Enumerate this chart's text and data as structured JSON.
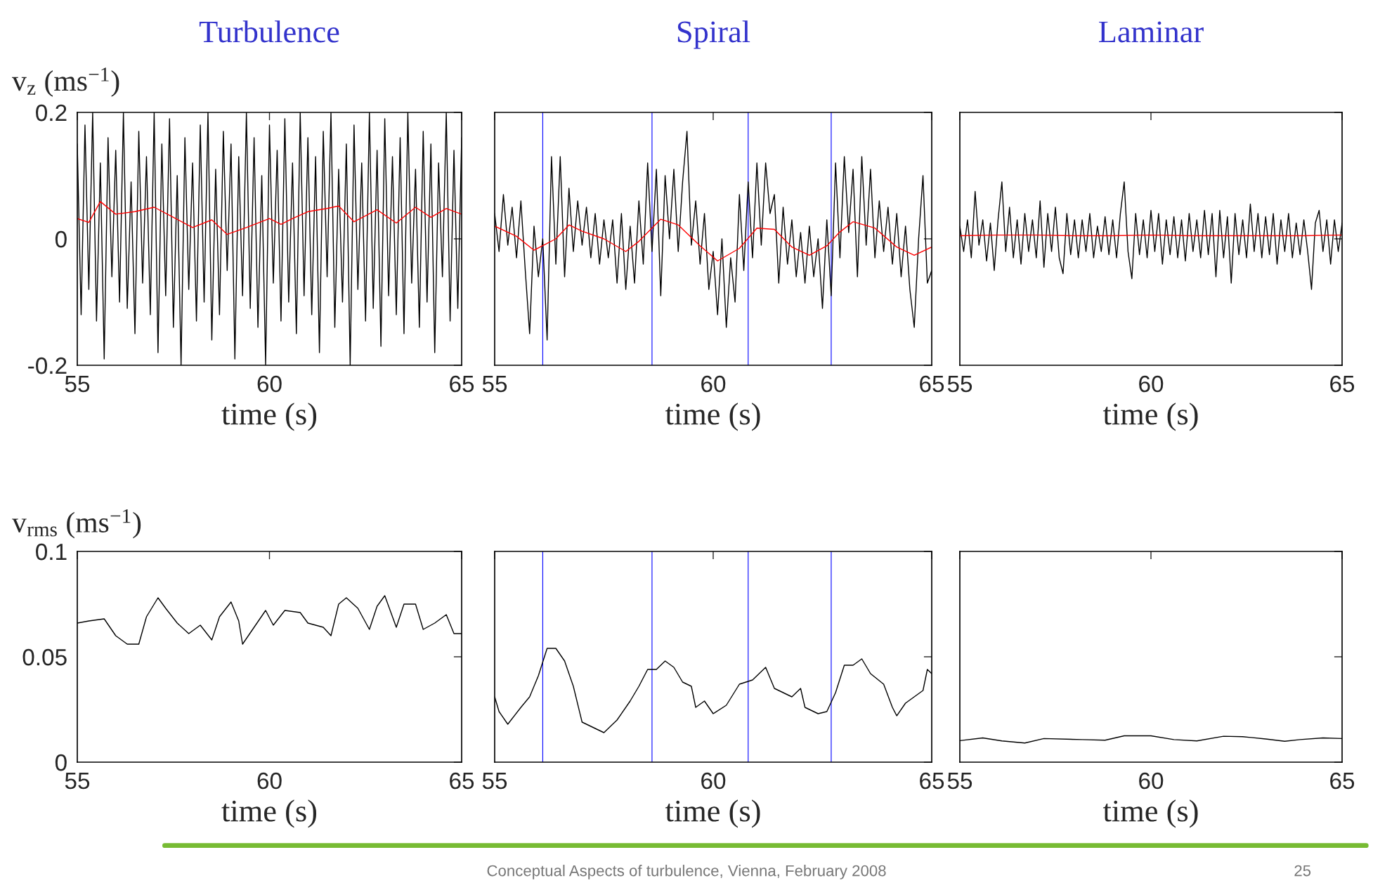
{
  "chart_data": [
    {
      "type": "line",
      "title": "Turbulence",
      "xlabel": "time (s)",
      "ylabel": "v$_{z}$ (ms$^{−1}$)",
      "xlim": [
        55,
        65
      ],
      "xticks": [
        55,
        60,
        65
      ],
      "ylim": [
        -0.2,
        0.2
      ],
      "yticks": [
        -0.2,
        0,
        0.2
      ],
      "series": [
        {
          "color": "#000000",
          "x": [
            55,
            55.1,
            55.2,
            55.3,
            55.4,
            55.5,
            55.6,
            55.7,
            55.8,
            55.9,
            56,
            56.1,
            56.2,
            56.3,
            56.4,
            56.5,
            56.6,
            56.7,
            56.8,
            56.9,
            57,
            57.1,
            57.2,
            57.3,
            57.4,
            57.5,
            57.6,
            57.7,
            57.8,
            57.9,
            58,
            58.1,
            58.2,
            58.3,
            58.4,
            58.5,
            58.6,
            58.7,
            58.8,
            58.9,
            59,
            59.1,
            59.2,
            59.3,
            59.4,
            59.5,
            59.6,
            59.7,
            59.8,
            59.9,
            60,
            60.1,
            60.2,
            60.3,
            60.4,
            60.5,
            60.6,
            60.7,
            60.8,
            60.9,
            61,
            61.1,
            61.2,
            61.3,
            61.4,
            61.5,
            61.6,
            61.7,
            61.8,
            61.9,
            62,
            62.1,
            62.2,
            62.3,
            62.4,
            62.5,
            62.6,
            62.7,
            62.8,
            62.9,
            63,
            63.1,
            63.2,
            63.3,
            63.4,
            63.5,
            63.6,
            63.7,
            63.8,
            63.9,
            64,
            64.1,
            64.2,
            64.3,
            64.4,
            64.5,
            64.6,
            64.7,
            64.8,
            64.9,
            65
          ],
          "values": [
            0.15,
            -0.12,
            0.18,
            -0.08,
            0.2,
            -0.13,
            0.12,
            -0.19,
            0.16,
            -0.06,
            0.14,
            -0.1,
            0.2,
            -0.11,
            0.09,
            -0.15,
            0.17,
            -0.07,
            0.13,
            -0.12,
            0.2,
            -0.18,
            0.15,
            -0.09,
            0.19,
            -0.14,
            0.1,
            -0.2,
            0.16,
            -0.08,
            0.12,
            -0.13,
            0.18,
            -0.1,
            0.2,
            -0.16,
            0.11,
            -0.12,
            0.17,
            -0.05,
            0.15,
            -0.19,
            0.13,
            -0.09,
            0.2,
            -0.11,
            0.16,
            -0.14,
            0.1,
            -0.2,
            0.18,
            -0.07,
            0.14,
            -0.13,
            0.19,
            -0.1,
            0.12,
            -0.15,
            0.2,
            -0.09,
            0.16,
            -0.12,
            0.13,
            -0.18,
            0.17,
            -0.06,
            0.2,
            -0.14,
            0.11,
            -0.1,
            0.15,
            -0.2,
            0.18,
            -0.08,
            0.12,
            -0.13,
            0.2,
            -0.11,
            0.14,
            -0.17,
            0.19,
            -0.09,
            0.13,
            -0.12,
            0.16,
            -0.15,
            0.2,
            -0.07,
            0.11,
            -0.14,
            0.17,
            -0.1,
            0.15,
            -0.18,
            0.12,
            -0.06,
            0.2,
            -0.13,
            0.14,
            -0.11,
            0.16
          ]
        },
        {
          "color": "#ff0000",
          "x": [
            55,
            55.3,
            55.6,
            56,
            56.5,
            57,
            57.5,
            58,
            58.5,
            58.9,
            59.4,
            60,
            60.3,
            60.6,
            61,
            61.5,
            61.8,
            62.2,
            62.8,
            63.3,
            63.8,
            64.2,
            64.6,
            65
          ],
          "values": [
            0.032,
            0.026,
            0.059,
            0.039,
            0.043,
            0.05,
            0.034,
            0.018,
            0.03,
            0.007,
            0.018,
            0.032,
            0.023,
            0.032,
            0.043,
            0.048,
            0.052,
            0.027,
            0.046,
            0.025,
            0.05,
            0.034,
            0.048,
            0.039
          ]
        }
      ]
    },
    {
      "type": "line",
      "title": "Spiral",
      "xlabel": "time (s)",
      "xlim": [
        55,
        65
      ],
      "xticks": [
        55,
        60,
        65
      ],
      "ylim": [
        -0.2,
        0.2
      ],
      "yticks": [
        -0.2,
        0,
        0.2
      ],
      "tick_labels": "x",
      "ref_lines": [
        {
          "axis": "x",
          "value": 56.1,
          "color": "#0000ff"
        },
        {
          "axis": "x",
          "value": 58.6,
          "color": "#0000ff"
        },
        {
          "axis": "x",
          "value": 60.8,
          "color": "#0000ff"
        },
        {
          "axis": "x",
          "value": 62.7,
          "color": "#0000ff"
        }
      ],
      "series": [
        {
          "color": "#000000",
          "x": [
            55,
            55.1,
            55.2,
            55.3,
            55.4,
            55.5,
            55.6,
            55.7,
            55.8,
            55.9,
            56,
            56.1,
            56.2,
            56.3,
            56.4,
            56.5,
            56.6,
            56.7,
            56.8,
            56.9,
            57,
            57.1,
            57.2,
            57.3,
            57.4,
            57.5,
            57.6,
            57.7,
            57.8,
            57.9,
            58,
            58.1,
            58.2,
            58.3,
            58.4,
            58.5,
            58.6,
            58.7,
            58.8,
            58.9,
            59,
            59.1,
            59.2,
            59.3,
            59.4,
            59.5,
            59.6,
            59.7,
            59.8,
            59.9,
            60,
            60.1,
            60.2,
            60.3,
            60.4,
            60.5,
            60.6,
            60.7,
            60.8,
            60.9,
            61,
            61.1,
            61.2,
            61.3,
            61.4,
            61.5,
            61.6,
            61.7,
            61.8,
            61.9,
            62,
            62.1,
            62.2,
            62.3,
            62.4,
            62.5,
            62.6,
            62.7,
            62.8,
            62.9,
            63,
            63.1,
            63.2,
            63.3,
            63.4,
            63.5,
            63.6,
            63.7,
            63.8,
            63.9,
            64,
            64.1,
            64.2,
            64.3,
            64.4,
            64.5,
            64.6,
            64.7,
            64.8,
            64.9,
            65
          ],
          "values": [
            0.04,
            -0.02,
            0.07,
            -0.01,
            0.05,
            -0.03,
            0.06,
            -0.05,
            -0.15,
            0.02,
            -0.06,
            0.0,
            -0.16,
            0.13,
            -0.04,
            0.13,
            -0.06,
            0.08,
            -0.02,
            0.06,
            -0.01,
            0.05,
            -0.03,
            0.04,
            -0.04,
            0.03,
            -0.03,
            0.03,
            -0.07,
            0.04,
            -0.08,
            0.02,
            -0.07,
            0.06,
            -0.04,
            0.12,
            -0.02,
            0.11,
            -0.09,
            0.1,
            0.0,
            0.11,
            -0.02,
            0.09,
            0.17,
            -0.01,
            0.06,
            -0.04,
            0.04,
            -0.08,
            -0.02,
            -0.12,
            0.0,
            -0.14,
            -0.03,
            -0.1,
            0.07,
            -0.05,
            0.09,
            -0.03,
            0.12,
            -0.01,
            0.12,
            0.04,
            0.07,
            -0.07,
            0.05,
            -0.04,
            0.03,
            -0.06,
            0.01,
            -0.07,
            0.02,
            -0.06,
            0.0,
            -0.11,
            0.03,
            -0.09,
            0.12,
            -0.03,
            0.13,
            0.01,
            0.11,
            -0.06,
            0.13,
            -0.01,
            0.11,
            -0.03,
            0.06,
            -0.02,
            0.05,
            -0.04,
            0.04,
            -0.06,
            0.02,
            -0.08,
            -0.14,
            0.0,
            0.1,
            -0.07,
            -0.05
          ]
        },
        {
          "color": "#ff0000",
          "x": [
            55,
            55.5,
            55.9,
            56.4,
            56.7,
            57,
            57.5,
            58,
            58.3,
            58.8,
            59.2,
            59.7,
            60.1,
            60.6,
            61,
            61.4,
            61.8,
            62.2,
            62.6,
            62.9,
            63.2,
            63.7,
            64.2,
            64.6,
            65
          ],
          "values": [
            0.02,
            0.004,
            -0.018,
            0,
            0.022,
            0.012,
            0,
            -0.02,
            -0.004,
            0.031,
            0.022,
            -0.011,
            -0.035,
            -0.015,
            0.017,
            0.015,
            -0.013,
            -0.026,
            -0.011,
            0.011,
            0.027,
            0.017,
            -0.013,
            -0.026,
            -0.013
          ]
        }
      ]
    },
    {
      "type": "line",
      "title": "Laminar",
      "xlabel": "time (s)",
      "xlim": [
        55,
        65
      ],
      "xticks": [
        55,
        60,
        65
      ],
      "ylim": [
        -0.2,
        0.2
      ],
      "yticks": [
        -0.2,
        0,
        0.2
      ],
      "tick_labels": "x",
      "series": [
        {
          "color": "#000000",
          "x": [
            55,
            55.1,
            55.2,
            55.3,
            55.4,
            55.5,
            55.6,
            55.7,
            55.8,
            55.9,
            56,
            56.1,
            56.2,
            56.3,
            56.4,
            56.5,
            56.6,
            56.7,
            56.8,
            56.9,
            57,
            57.1,
            57.2,
            57.3,
            57.4,
            57.5,
            57.6,
            57.7,
            57.8,
            57.9,
            58,
            58.1,
            58.2,
            58.3,
            58.4,
            58.5,
            58.6,
            58.7,
            58.8,
            58.9,
            59,
            59.1,
            59.2,
            59.3,
            59.4,
            59.5,
            59.6,
            59.7,
            59.8,
            59.9,
            60,
            60.1,
            60.2,
            60.3,
            60.4,
            60.5,
            60.6,
            60.7,
            60.8,
            60.9,
            61,
            61.1,
            61.2,
            61.3,
            61.4,
            61.5,
            61.6,
            61.7,
            61.8,
            61.9,
            62,
            62.1,
            62.2,
            62.3,
            62.4,
            62.5,
            62.6,
            62.7,
            62.8,
            62.9,
            63,
            63.1,
            63.2,
            63.3,
            63.4,
            63.5,
            63.6,
            63.7,
            63.8,
            63.9,
            64,
            64.1,
            64.2,
            64.3,
            64.4,
            64.5,
            64.6,
            64.7,
            64.8,
            64.9,
            65
          ],
          "values": [
            0.02,
            -0.02,
            0.03,
            -0.03,
            0.075,
            -0.01,
            0.03,
            -0.035,
            0.025,
            -0.05,
            0.03,
            0.09,
            -0.02,
            0.05,
            -0.03,
            0.03,
            -0.04,
            0.04,
            -0.02,
            0.03,
            -0.03,
            0.06,
            -0.045,
            0.04,
            -0.02,
            0.05,
            -0.03,
            -0.055,
            0.04,
            -0.025,
            0.03,
            -0.03,
            0.03,
            -0.02,
            0.04,
            -0.03,
            0.02,
            -0.02,
            0.035,
            -0.025,
            0.03,
            -0.03,
            0.04,
            0.09,
            -0.02,
            -0.063,
            0.04,
            -0.025,
            0.03,
            -0.03,
            0.045,
            -0.02,
            0.04,
            -0.04,
            0.03,
            -0.025,
            0.035,
            -0.03,
            0.03,
            -0.035,
            0.04,
            -0.02,
            0.03,
            -0.03,
            0.045,
            -0.025,
            0.04,
            -0.06,
            0.045,
            -0.03,
            0.035,
            -0.07,
            0.04,
            -0.025,
            0.03,
            -0.03,
            0.055,
            -0.02,
            0.04,
            -0.03,
            0.035,
            -0.025,
            0.04,
            -0.04,
            0.03,
            -0.02,
            0.04,
            -0.03,
            0.025,
            -0.025,
            0.03,
            -0.02,
            -0.08,
            0.025,
            0.045,
            -0.02,
            0.03,
            -0.04,
            0.03,
            -0.02,
            0.025
          ]
        },
        {
          "color": "#ff0000",
          "x": [
            55,
            56,
            57,
            58,
            59,
            60,
            61,
            62,
            63,
            64,
            65
          ],
          "values": [
            0.005,
            0.006,
            0.006,
            0.005,
            0.005,
            0.006,
            0.005,
            0.005,
            0.005,
            0.005,
            0.006
          ]
        }
      ]
    },
    {
      "type": "line",
      "xlabel": "time (s)",
      "ylabel": "v$_{rms}$ (ms$^{−1}$)",
      "xlim": [
        55,
        65
      ],
      "xticks": [
        55,
        60,
        65
      ],
      "ylim": [
        0,
        0.1
      ],
      "yticks": [
        0,
        0.05,
        0.1
      ],
      "series": [
        {
          "color": "#000000",
          "x": [
            55,
            55.3,
            55.7,
            56,
            56.3,
            56.6,
            56.8,
            57.1,
            57.3,
            57.6,
            57.9,
            58.2,
            58.5,
            58.7,
            59,
            59.2,
            59.3,
            59.6,
            59.9,
            60.1,
            60.4,
            60.8,
            61,
            61.4,
            61.6,
            61.8,
            62,
            62.3,
            62.6,
            62.8,
            63,
            63.3,
            63.5,
            63.8,
            64,
            64.3,
            64.6,
            64.8,
            65
          ],
          "values": [
            0.066,
            0.067,
            0.068,
            0.06,
            0.056,
            0.056,
            0.069,
            0.078,
            0.073,
            0.066,
            0.061,
            0.065,
            0.058,
            0.069,
            0.076,
            0.067,
            0.056,
            0.064,
            0.072,
            0.065,
            0.072,
            0.071,
            0.066,
            0.064,
            0.06,
            0.075,
            0.078,
            0.073,
            0.063,
            0.074,
            0.079,
            0.064,
            0.075,
            0.075,
            0.063,
            0.066,
            0.07,
            0.061,
            0.061
          ]
        }
      ]
    },
    {
      "type": "line",
      "xlabel": "time (s)",
      "xlim": [
        55,
        65
      ],
      "xticks": [
        55,
        60,
        65
      ],
      "ylim": [
        0,
        0.1
      ],
      "yticks": [
        0,
        0.05,
        0.1
      ],
      "tick_labels": "x",
      "ref_lines": [
        {
          "axis": "x",
          "value": 56.1,
          "color": "#0000ff"
        },
        {
          "axis": "x",
          "value": 58.6,
          "color": "#0000ff"
        },
        {
          "axis": "x",
          "value": 60.8,
          "color": "#0000ff"
        },
        {
          "axis": "x",
          "value": 62.7,
          "color": "#0000ff"
        }
      ],
      "series": [
        {
          "color": "#000000",
          "x": [
            55,
            55.1,
            55.3,
            55.6,
            55.8,
            56,
            56.2,
            56.4,
            56.6,
            56.8,
            57,
            57.3,
            57.5,
            57.8,
            58.1,
            58.3,
            58.5,
            58.7,
            58.9,
            59.1,
            59.3,
            59.5,
            59.6,
            59.8,
            60,
            60.3,
            60.6,
            60.9,
            61.2,
            61.4,
            61.8,
            62,
            62.1,
            62.4,
            62.6,
            62.8,
            63,
            63.2,
            63.4,
            63.6,
            63.9,
            64.1,
            64.2,
            64.4,
            64.6,
            64.8,
            64.9,
            65
          ],
          "values": [
            0.031,
            0.024,
            0.018,
            0.026,
            0.031,
            0.041,
            0.054,
            0.054,
            0.048,
            0.036,
            0.019,
            0.016,
            0.014,
            0.02,
            0.029,
            0.036,
            0.044,
            0.044,
            0.048,
            0.045,
            0.038,
            0.036,
            0.026,
            0.029,
            0.023,
            0.027,
            0.037,
            0.039,
            0.045,
            0.035,
            0.031,
            0.035,
            0.026,
            0.023,
            0.024,
            0.033,
            0.046,
            0.046,
            0.049,
            0.042,
            0.037,
            0.026,
            0.022,
            0.028,
            0.031,
            0.034,
            0.044,
            0.042
          ]
        }
      ]
    },
    {
      "type": "line",
      "xlabel": "time (s)",
      "xlim": [
        55,
        65
      ],
      "xticks": [
        55,
        60,
        65
      ],
      "ylim": [
        0,
        0.1
      ],
      "yticks": [
        0,
        0.05,
        0.1
      ],
      "tick_labels": "x",
      "annotations": [
        "Conceptual Aspects of turbulence, Vienna, February 2008",
        "25"
      ],
      "series": [
        {
          "color": "#000000",
          "x": [
            55,
            55.6,
            56.1,
            56.7,
            57.2,
            58.2,
            58.8,
            59.3,
            60,
            60.6,
            61.2,
            61.9,
            62.4,
            63,
            63.5,
            63.9,
            64.5,
            65
          ],
          "values": [
            0.0102,
            0.0115,
            0.0101,
            0.0091,
            0.0112,
            0.0107,
            0.0104,
            0.0125,
            0.0125,
            0.0107,
            0.0101,
            0.0123,
            0.0121,
            0.011,
            0.0099,
            0.0107,
            0.0115,
            0.0112
          ]
        }
      ]
    }
  ]
}
